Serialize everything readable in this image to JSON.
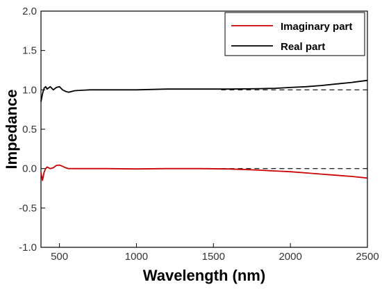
{
  "chart_data": {
    "type": "line",
    "title": "",
    "xlabel": "Wavelength (nm)",
    "ylabel": "Impedance",
    "xlim": [
      380,
      2500
    ],
    "ylim": [
      -1.0,
      2.0
    ],
    "xticks": [
      500,
      1000,
      1500,
      2000,
      2500
    ],
    "xtick_labels": [
      "500",
      "1000",
      "1500",
      "2000",
      "2500"
    ],
    "yticks": [
      -1.0,
      -0.5,
      0.0,
      0.5,
      1.0,
      1.5,
      2.0
    ],
    "ytick_labels": [
      "-1.0",
      "-0.5",
      "0.0",
      "0.5",
      "1.0",
      "1.5",
      "2.0"
    ],
    "grid": false,
    "legend_position": "top-right",
    "series": [
      {
        "name": "Imaginary part",
        "color": "#cc0000",
        "x": [
          380,
          390,
          400,
          410,
          420,
          440,
          460,
          480,
          500,
          520,
          540,
          560,
          600,
          700,
          800,
          1000,
          1200,
          1400,
          1600,
          1800,
          1900,
          2000,
          2100,
          2200,
          2300,
          2400,
          2500
        ],
        "y": [
          -0.05,
          -0.15,
          -0.05,
          0.0,
          0.02,
          0.0,
          0.01,
          0.04,
          0.045,
          0.03,
          0.01,
          0.0,
          0.0,
          0.0,
          0.0,
          -0.005,
          0.0,
          0.0,
          -0.005,
          -0.02,
          -0.03,
          -0.04,
          -0.055,
          -0.07,
          -0.085,
          -0.1,
          -0.12
        ]
      },
      {
        "name": "Real part",
        "color": "#000000",
        "x": [
          380,
          390,
          400,
          410,
          420,
          440,
          460,
          480,
          500,
          520,
          540,
          560,
          580,
          600,
          700,
          800,
          1000,
          1200,
          1400,
          1600,
          1800,
          1900,
          2000,
          2100,
          2200,
          2300,
          2400,
          2500
        ],
        "y": [
          0.85,
          0.95,
          1.02,
          1.04,
          1.01,
          1.04,
          1.0,
          1.03,
          1.04,
          1.0,
          0.98,
          0.97,
          0.98,
          0.99,
          1.0,
          1.0,
          1.0,
          1.01,
          1.01,
          1.01,
          1.015,
          1.02,
          1.03,
          1.04,
          1.055,
          1.075,
          1.095,
          1.12
        ]
      }
    ],
    "reference_lines": [
      {
        "y": 1.0,
        "x_from": 1550,
        "x_to": 2500,
        "style": "dashed",
        "color": "#000000"
      },
      {
        "y": 0.0,
        "x_from": 1550,
        "x_to": 2500,
        "style": "dashed",
        "color": "#000000"
      }
    ]
  }
}
